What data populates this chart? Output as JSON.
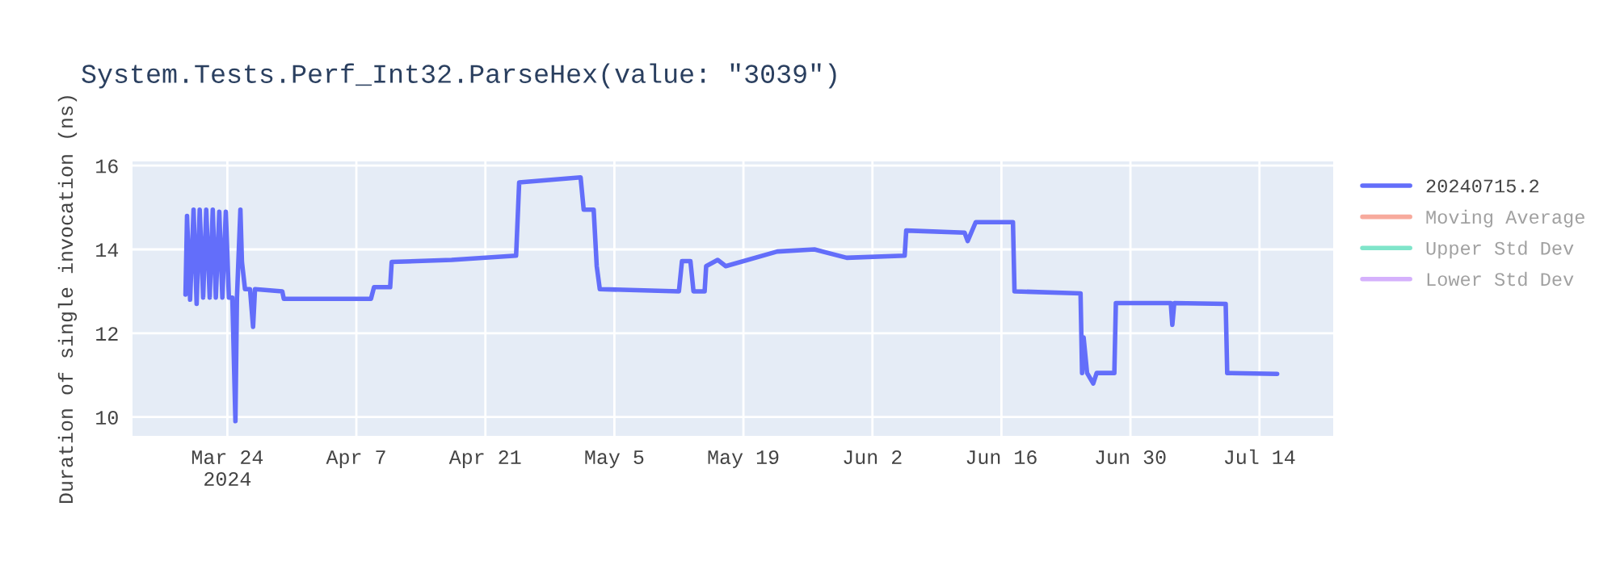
{
  "chart_data": {
    "type": "line",
    "title": "System.Tests.Perf_Int32.ParseHex(value: \"3039\")",
    "ylabel": "Duration of single invocation (ns)",
    "xlim": [
      "2024-03-13T17:00",
      "2024-07-22T00:00"
    ],
    "xticks": [
      {
        "value": "2024-03-24",
        "label": "Mar 24\n2024"
      },
      {
        "value": "2024-04-07",
        "label": "Apr 7"
      },
      {
        "value": "2024-04-21",
        "label": "Apr 21"
      },
      {
        "value": "2024-05-05",
        "label": "May 5"
      },
      {
        "value": "2024-05-19",
        "label": "May 19"
      },
      {
        "value": "2024-06-02",
        "label": "Jun 2"
      },
      {
        "value": "2024-06-16",
        "label": "Jun 16"
      },
      {
        "value": "2024-06-30",
        "label": "Jun 30"
      },
      {
        "value": "2024-07-14",
        "label": "Jul 14"
      }
    ],
    "ylim": [
      9.55,
      16.1
    ],
    "yticks": [
      10,
      12,
      14,
      16
    ],
    "grid": true,
    "legend": "top right",
    "marker": "none",
    "line_style": "solid",
    "series": [
      {
        "name": "20240715.2",
        "color": "#636efa",
        "x": [
          "2024-03-19T11:00",
          "2024-03-19T15:00",
          "2024-03-19T23:00",
          "2024-03-20T08:00",
          "2024-03-20T16:00",
          "2024-03-21T00:00",
          "2024-03-21T09:00",
          "2024-03-21T17:00",
          "2024-03-22T02:00",
          "2024-03-22T10:00",
          "2024-03-22T18:00",
          "2024-03-23T03:00",
          "2024-03-23T11:00",
          "2024-03-23T20:00",
          "2024-03-24T04:00",
          "2024-03-24T13:00",
          "2024-03-24T21:00",
          "2024-03-25T01:00",
          "2024-03-25T10:00",
          "2024-03-25T14:00",
          "2024-03-25T22:00",
          "2024-03-26T11:00",
          "2024-03-26T19:00",
          "2024-03-27T00:00",
          "2024-03-29T23:00",
          "2024-03-30T03:00",
          "2024-04-08T14:00",
          "2024-04-08T22:00",
          "2024-04-10T16:00",
          "2024-04-10T20:00",
          "2024-04-17T08:00",
          "2024-04-24T08:00",
          "2024-04-24T16:00",
          "2024-05-01T08:00",
          "2024-05-01T16:00",
          "2024-05-02T18:00",
          "2024-05-03T02:00",
          "2024-05-03T10:00",
          "2024-05-12T00:00",
          "2024-05-12T08:00",
          "2024-05-13T06:00",
          "2024-05-13T14:00",
          "2024-05-14T19:00",
          "2024-05-14T23:00",
          "2024-05-16T05:00",
          "2024-05-17T02:00",
          "2024-05-22T16:00",
          "2024-05-26T17:00",
          "2024-05-30T05:00",
          "2024-06-05T12:00",
          "2024-06-05T16:00",
          "2024-06-12T00:00",
          "2024-06-12T08:00",
          "2024-06-13T05:00",
          "2024-06-17T06:00",
          "2024-06-17T10:00",
          "2024-06-24T14:00",
          "2024-06-24T18:00",
          "2024-06-24T22:00",
          "2024-06-25T07:00",
          "2024-06-25T23:00",
          "2024-06-26T08:00",
          "2024-06-28T06:00",
          "2024-06-28T10:00",
          "2024-07-04T09:00",
          "2024-07-04T13:00",
          "2024-07-04T18:00",
          "2024-07-10T08:00",
          "2024-07-10T12:00",
          "2024-07-15T22:00"
        ],
        "values": [
          12.92,
          14.8,
          12.8,
          14.95,
          12.7,
          14.95,
          12.85,
          14.95,
          12.85,
          14.95,
          12.85,
          14.9,
          12.85,
          14.9,
          12.85,
          12.85,
          9.9,
          12.85,
          14.95,
          13.7,
          13.05,
          13.05,
          12.15,
          13.05,
          13.0,
          12.82,
          12.82,
          13.1,
          13.1,
          13.7,
          13.75,
          13.85,
          15.6,
          15.72,
          14.95,
          14.95,
          13.6,
          13.05,
          13.0,
          13.72,
          13.72,
          13.0,
          13.0,
          13.6,
          13.75,
          13.6,
          13.95,
          14.0,
          13.8,
          13.85,
          14.45,
          14.4,
          14.2,
          14.65,
          14.65,
          13.0,
          12.95,
          11.05,
          11.9,
          11.05,
          10.8,
          11.05,
          11.05,
          12.72,
          12.72,
          12.2,
          12.72,
          12.7,
          11.05,
          11.03
        ]
      },
      {
        "name": "Moving Average",
        "color": "#ef553b"
      },
      {
        "name": "Upper Std Dev",
        "color": "#00cc96"
      },
      {
        "name": "Lower Std Dev",
        "color": "#ab63fa"
      }
    ]
  }
}
